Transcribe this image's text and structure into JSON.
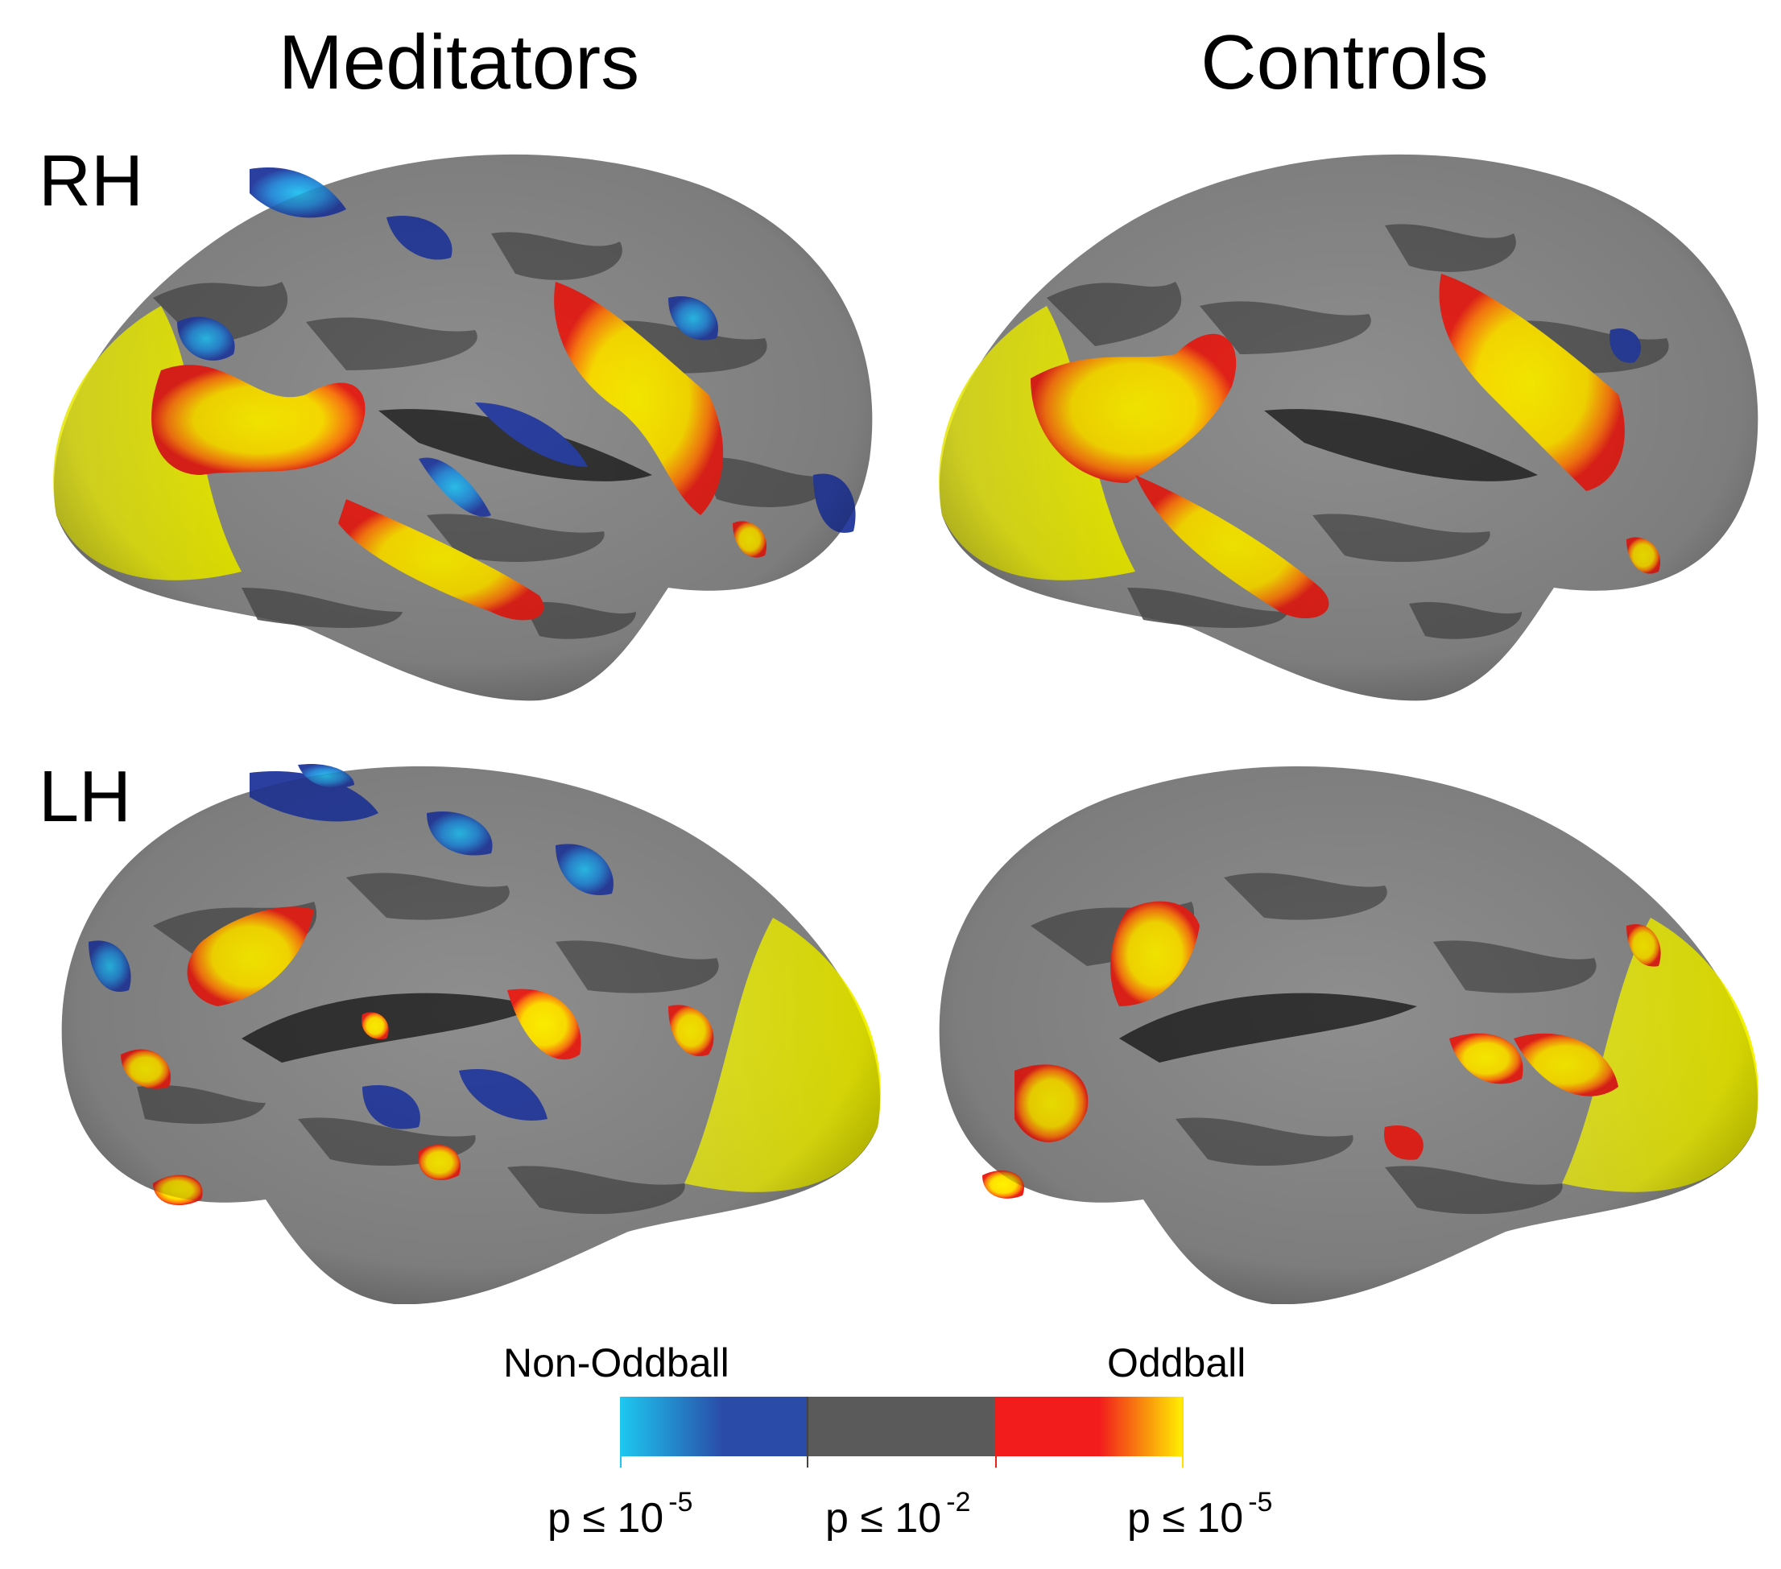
{
  "columns": [
    {
      "label": "Meditators"
    },
    {
      "label": "Controls"
    }
  ],
  "rows": [
    {
      "label": "RH"
    },
    {
      "label": "LH"
    }
  ],
  "colorbar": {
    "left_label": "Non-Oddball",
    "right_label": "Oddball",
    "ticks": [
      {
        "prefix": "p ≤ 10",
        "exponent": "-5"
      },
      {
        "prefix": "p ≤ 10",
        "exponent": "-2"
      },
      {
        "prefix": "p ≤ 10",
        "exponent": "-5"
      }
    ],
    "colors": {
      "cyan": "#1EC8F0",
      "blue": "#2A4BA8",
      "gray": "#5A5A5A",
      "red": "#F21C1C",
      "yellow": "#FFF200"
    }
  },
  "surface_colors": {
    "gyral": "#8C8C8C",
    "sulcal": "#555555",
    "activation_yellow": "#F2F200",
    "activation_red": "#E8221A",
    "deactivation_blue": "#2D4FB0",
    "deactivation_cyan": "#2BB3E8"
  }
}
